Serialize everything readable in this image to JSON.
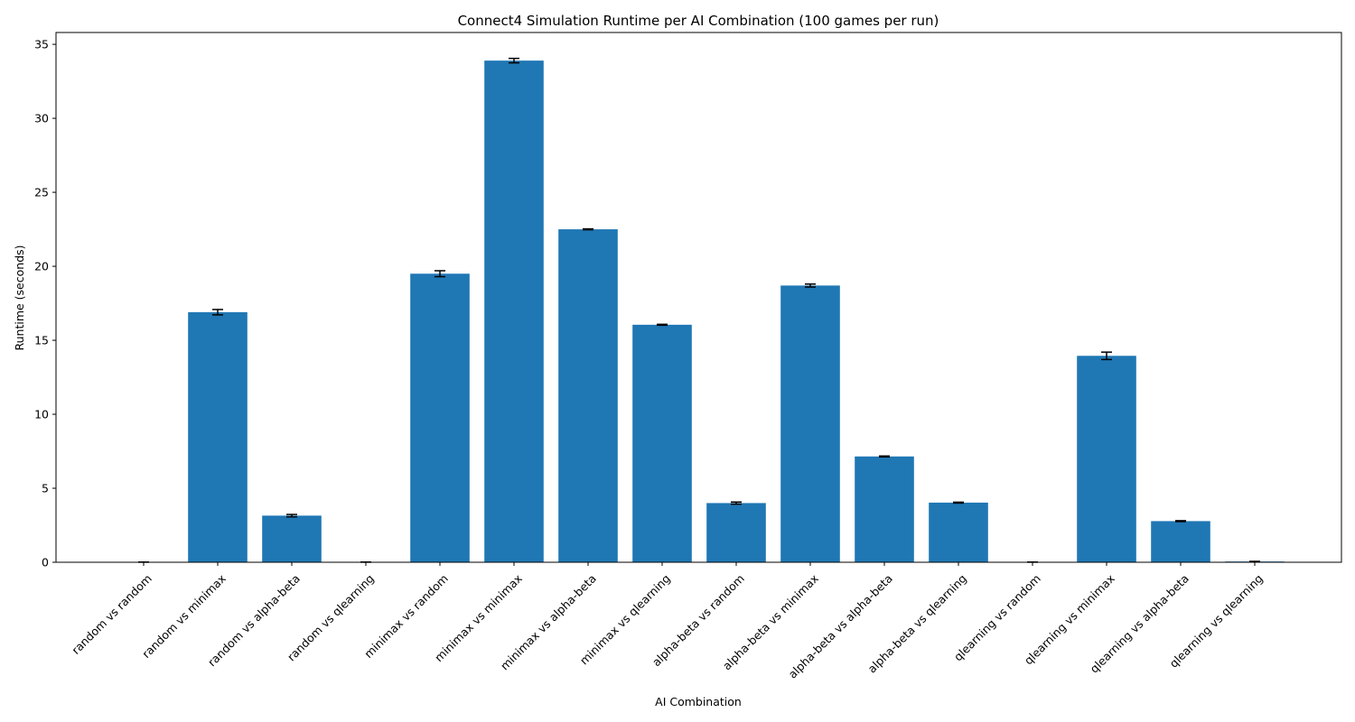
{
  "chart_data": {
    "type": "bar",
    "title": "Connect4 Simulation Runtime per AI Combination (100 games per run)",
    "xlabel": "AI Combination",
    "ylabel": "Runtime (seconds)",
    "ylim": [
      0,
      35.8
    ],
    "yticks": [
      0,
      5,
      10,
      15,
      20,
      25,
      30,
      35
    ],
    "categories": [
      "random vs random",
      "random vs minimax",
      "random vs alpha-beta",
      "random vs qlearning",
      "minimax vs random",
      "minimax vs minimax",
      "minimax vs alpha-beta",
      "minimax vs qlearning",
      "alpha-beta vs random",
      "alpha-beta vs minimax",
      "alpha-beta vs alpha-beta",
      "alpha-beta vs qlearning",
      "qlearning vs random",
      "qlearning vs minimax",
      "qlearning vs alpha-beta",
      "qlearning vs qlearning"
    ],
    "values": [
      0.01,
      16.9,
      3.15,
      0.01,
      19.5,
      33.9,
      22.5,
      16.05,
      4.0,
      18.7,
      7.15,
      4.03,
      0.01,
      13.95,
      2.78,
      0.05
    ],
    "errors": [
      0.0,
      0.18,
      0.08,
      0.0,
      0.2,
      0.15,
      0.03,
      0.03,
      0.07,
      0.1,
      0.03,
      0.03,
      0.0,
      0.25,
      0.03,
      0.01
    ],
    "bar_color": "#1f77b4",
    "grid": false,
    "legend": "none"
  }
}
